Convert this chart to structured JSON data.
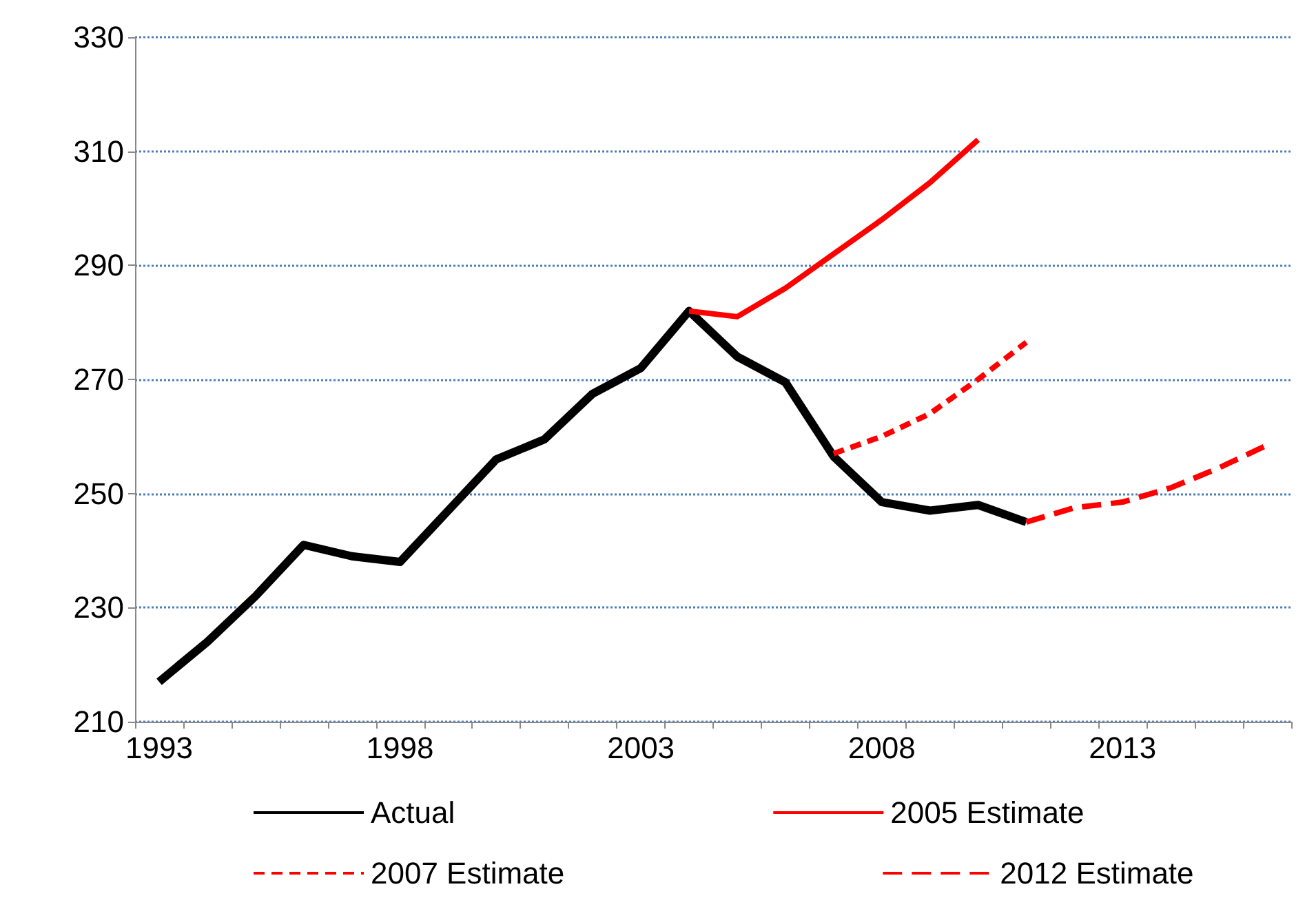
{
  "chart_data": {
    "type": "line",
    "categories": [
      "1993",
      null,
      null,
      null,
      null,
      "1998",
      null,
      null,
      null,
      null,
      "2003",
      null,
      null,
      null,
      null,
      "2008",
      null,
      null,
      null,
      null,
      "2013",
      null,
      null,
      null
    ],
    "series": [
      {
        "name": "Actual",
        "color": "#000000",
        "line_style": "solid",
        "values": [
          217,
          224,
          232,
          241,
          239,
          238,
          247,
          256,
          259.5,
          267.5,
          272,
          282,
          274,
          269.5,
          256.5,
          248.5,
          247,
          248,
          245,
          null,
          null,
          null,
          null,
          null
        ]
      },
      {
        "name": "2005 Estimate",
        "color": "#ff0000",
        "line_style": "solid",
        "values": [
          null,
          null,
          null,
          null,
          null,
          null,
          null,
          null,
          null,
          null,
          null,
          282,
          281,
          286,
          292,
          298,
          304.5,
          312,
          null,
          null,
          null,
          null,
          null,
          null
        ]
      },
      {
        "name": "2007 Estimate",
        "color": "#ff0000",
        "line_style": "dashed",
        "values": [
          null,
          null,
          null,
          null,
          null,
          null,
          null,
          null,
          null,
          null,
          null,
          null,
          null,
          null,
          257,
          260,
          264,
          270,
          276.5,
          null,
          null,
          null,
          null,
          null
        ]
      },
      {
        "name": "2012 Estimate",
        "color": "#ff0000",
        "line_style": "dashed",
        "values": [
          null,
          null,
          null,
          null,
          null,
          null,
          null,
          null,
          null,
          null,
          null,
          null,
          null,
          null,
          null,
          null,
          null,
          null,
          245,
          247.5,
          248.5,
          251,
          254.5,
          258.5
        ]
      }
    ],
    "ylim": [
      210,
      330
    ],
    "yticks": [
      210,
      230,
      250,
      270,
      290,
      310,
      330
    ],
    "grid": "y",
    "legend": "bottom",
    "marker": "none"
  }
}
